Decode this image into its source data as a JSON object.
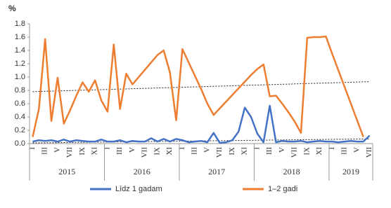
{
  "chart_data": {
    "type": "line",
    "ylabel": "%",
    "categories": [
      "I",
      null,
      "III",
      null,
      "V",
      null,
      "VII",
      null,
      "IX",
      null,
      "XI",
      null,
      "I",
      null,
      "III",
      null,
      "V",
      null,
      "VII",
      null,
      "IX",
      null,
      "XI",
      null,
      "I",
      null,
      "III",
      null,
      "V",
      null,
      "VII",
      null,
      "IX",
      null,
      "XI",
      null,
      "I",
      null,
      "III",
      null,
      "V",
      null,
      "VII",
      null,
      "IX",
      null,
      "XI",
      null,
      "I",
      null,
      "III",
      null,
      "V",
      null,
      "VII"
    ],
    "years": [
      "2015",
      "2016",
      "2017",
      "2018",
      "2019"
    ],
    "series": [
      {
        "name": "Līdz 1 gadam",
        "color": "#4472c4",
        "values": [
          0.03,
          0.05,
          0.04,
          0.05,
          0.03,
          0.06,
          0.03,
          0.05,
          0.04,
          0.03,
          0.03,
          0.06,
          0.03,
          0.03,
          0.05,
          0.02,
          0.04,
          0.03,
          0.03,
          0.08,
          0.03,
          0.07,
          0.03,
          0.07,
          0.05,
          0.02,
          0.03,
          0.04,
          0.02,
          0.16,
          0.01,
          0.02,
          0.05,
          0.18,
          0.54,
          0.4,
          0.15,
          0.02,
          0.57,
          0.02,
          0.04,
          0.03,
          0.03,
          0.04,
          0.02,
          0.03,
          0.04,
          0.03,
          0.03,
          0.02,
          0.03,
          0.04,
          0.03,
          0.03,
          0.12
        ],
        "trend": [
          0.01,
          0.07
        ]
      },
      {
        "name": "1–2 gadi",
        "color": "#ed7d31",
        "values": [
          0.1,
          0.52,
          1.57,
          0.34,
          0.99,
          0.3,
          0.5,
          0.72,
          0.92,
          0.78,
          0.95,
          0.65,
          0.48,
          1.49,
          0.52,
          1.05,
          0.89,
          1.0,
          1.11,
          1.22,
          1.33,
          1.4,
          1.07,
          0.35,
          1.42,
          1.22,
          1.02,
          0.82,
          0.6,
          0.43,
          0.53,
          0.63,
          0.73,
          0.83,
          0.93,
          1.03,
          1.12,
          1.19,
          0.71,
          0.72,
          0.6,
          0.47,
          0.33,
          0.16,
          1.59,
          1.6,
          1.6,
          1.61,
          1.35,
          1.1,
          0.85,
          0.6,
          0.35,
          0.1,
          null
        ],
        "trend": [
          0.78,
          0.93
        ]
      }
    ],
    "ylim": [
      0,
      1.8
    ],
    "yticks": [
      {
        "value": 0,
        "label": "0.0"
      },
      {
        "value": 0.2,
        "label": "0.2"
      },
      {
        "value": 0.4,
        "label": "0.4"
      },
      {
        "value": 0.6,
        "label": "0.6"
      },
      {
        "value": 0.8,
        "label": "0.8"
      },
      {
        "value": 1,
        "label": "1.0"
      },
      {
        "value": 1.2,
        "label": "1.2"
      },
      {
        "value": 1.4,
        "label": "1.4"
      },
      {
        "value": 1.6,
        "label": "1.6"
      },
      {
        "value": 1.8,
        "label": "1.8"
      }
    ],
    "legend": "bottom"
  }
}
